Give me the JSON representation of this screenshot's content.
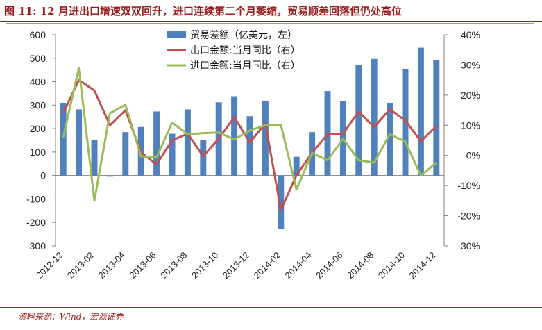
{
  "header": {
    "title": "图 11:  12 月进出口增速双双回升，进口连续第二个月萎缩，贸易顺差回落但仍处高位"
  },
  "footer": {
    "source": "资料来源：Wind，宏源证券"
  },
  "colors": {
    "title": "#9b1b1b",
    "bar": "#4f81bd",
    "export_line": "#c0504d",
    "import_line": "#9bbb59"
  },
  "chart_data": {
    "type": "bar",
    "categories": [
      "2012-12",
      "2013-01",
      "2013-02",
      "2013-03",
      "2013-04",
      "2013-05",
      "2013-06",
      "2013-07",
      "2013-08",
      "2013-09",
      "2013-10",
      "2013-11",
      "2013-12",
      "2014-01",
      "2014-02",
      "2014-03",
      "2014-04",
      "2014-05",
      "2014-06",
      "2014-07",
      "2014-08",
      "2014-09",
      "2014-10",
      "2014-11",
      "2014-12"
    ],
    "x_tick_labels": [
      "2012-12",
      "2013-02",
      "2013-04",
      "2013-06",
      "2013-08",
      "2013-10",
      "2013-12",
      "2014-02",
      "2014-04",
      "2014-06",
      "2014-08",
      "2014-10",
      "2014-12"
    ],
    "series": [
      {
        "name": "贸易差额（亿美元，左）",
        "kind": "bar",
        "axis": "left",
        "values": [
          310,
          282,
          150,
          -5,
          185,
          207,
          273,
          178,
          282,
          150,
          312,
          338,
          253,
          318,
          -227,
          80,
          185,
          360,
          318,
          472,
          497,
          310,
          455,
          545,
          492
        ]
      },
      {
        "name": "出口金额:当月同比（右）",
        "kind": "line",
        "axis": "right",
        "values": [
          14,
          25,
          21.5,
          10,
          15,
          1,
          -3,
          5,
          7.2,
          -0.3,
          5.6,
          12.7,
          4.3,
          10.6,
          -18.1,
          -6.6,
          0.9,
          7,
          7.2,
          14.5,
          9.4,
          15.3,
          11.6,
          4.7,
          9.7
        ]
      },
      {
        "name": "进口金额:当月同比（右）",
        "kind": "line",
        "axis": "right",
        "values": [
          6,
          29,
          -15,
          14,
          16.8,
          -0.3,
          -0.7,
          10.9,
          7,
          7.4,
          7.6,
          5.3,
          8.3,
          10,
          10.1,
          -11.3,
          0.8,
          -1.6,
          5.5,
          -1.6,
          -2.4,
          7,
          4.6,
          -6.7,
          -2.4
        ]
      }
    ],
    "left_axis": {
      "min": -300,
      "max": 600,
      "step": 100,
      "tick_labels": [
        "600",
        "500",
        "400",
        "300",
        "200",
        "100",
        "0",
        "-100",
        "-200",
        "-300"
      ]
    },
    "right_axis": {
      "min": -30,
      "max": 40,
      "step": 10,
      "tick_labels": [
        "40%",
        "30%",
        "20%",
        "10%",
        "0%",
        "-10%",
        "-20%",
        "-30%"
      ]
    },
    "grid": false,
    "legend_position": "top-center"
  }
}
